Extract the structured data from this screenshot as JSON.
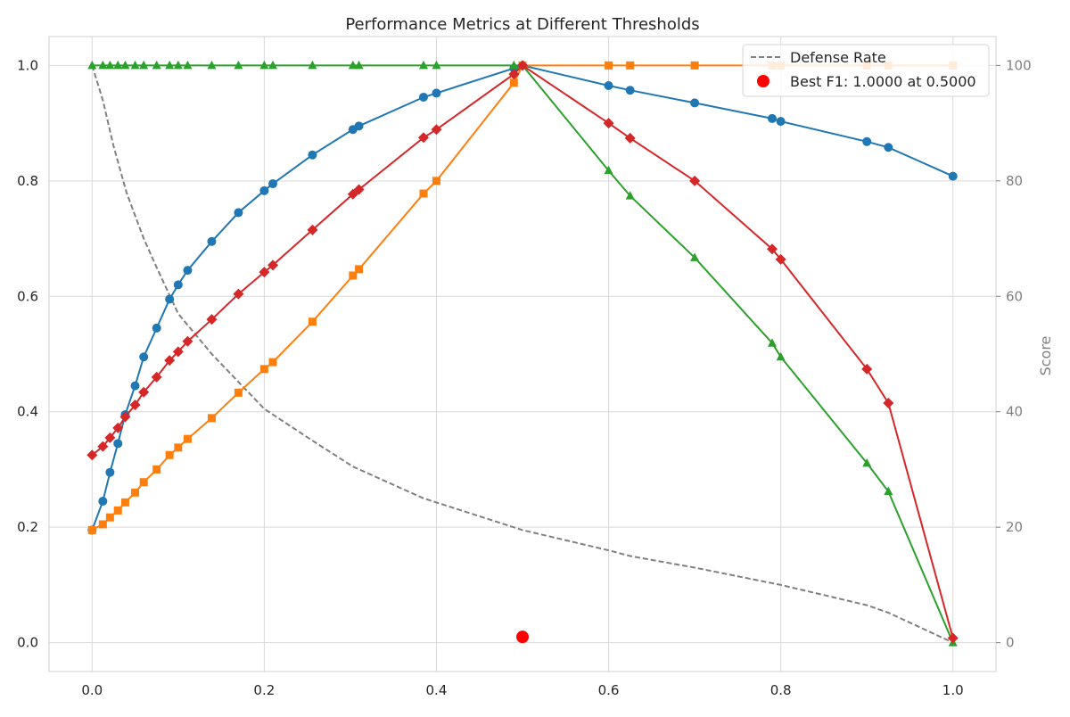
{
  "chart_data": {
    "type": "line",
    "title": "Performance Metrics at Different Thresholds",
    "xlabel": "",
    "ylabel": "",
    "y2label": "Score",
    "xlim": [
      -0.05,
      1.05
    ],
    "ylim": [
      -0.05,
      1.05
    ],
    "y2lim": [
      -5,
      105
    ],
    "xticks": [
      "0.0",
      "0.2",
      "0.4",
      "0.6",
      "0.8",
      "1.0"
    ],
    "yticks": [
      "0.0",
      "0.2",
      "0.4",
      "0.6",
      "0.8",
      "1.0"
    ],
    "y2ticks": [
      "0",
      "20",
      "40",
      "60",
      "80",
      "100"
    ],
    "grid": true,
    "legend_position": "top-right",
    "legend": [
      {
        "label": "Defense Rate",
        "style": "dashed-line",
        "color": "#808080"
      },
      {
        "label": "Best F1: 1.0000 at 0.5000",
        "style": "marker",
        "color": "#ff0000"
      }
    ],
    "series": [
      {
        "color": "#1f77b4",
        "marker": "circle",
        "points": [
          [
            0,
            0.195
          ],
          [
            0.0125,
            0.245
          ],
          [
            0.0208,
            0.295
          ],
          [
            0.03,
            0.345
          ],
          [
            0.0385,
            0.395
          ],
          [
            0.05,
            0.445
          ],
          [
            0.06,
            0.495
          ],
          [
            0.075,
            0.545
          ],
          [
            0.09,
            0.595
          ],
          [
            0.1,
            0.62
          ],
          [
            0.111,
            0.645
          ],
          [
            0.139,
            0.695
          ],
          [
            0.17,
            0.745
          ],
          [
            0.2,
            0.783
          ],
          [
            0.21,
            0.795
          ],
          [
            0.256,
            0.845
          ],
          [
            0.303,
            0.889
          ],
          [
            0.31,
            0.895
          ],
          [
            0.385,
            0.945
          ],
          [
            0.4,
            0.952
          ],
          [
            0.49,
            0.995
          ],
          [
            0.5,
            1.0
          ],
          [
            0.6,
            0.965
          ],
          [
            0.625,
            0.957
          ],
          [
            0.7,
            0.935
          ],
          [
            0.79,
            0.908
          ],
          [
            0.8,
            0.903
          ],
          [
            0.9,
            0.868
          ],
          [
            0.925,
            0.858
          ],
          [
            1.0,
            0.808
          ]
        ]
      },
      {
        "color": "#ff7f0e",
        "marker": "square",
        "points": [
          [
            0,
            0.195
          ],
          [
            0.0125,
            0.205
          ],
          [
            0.0208,
            0.217
          ],
          [
            0.03,
            0.229
          ],
          [
            0.0385,
            0.243
          ],
          [
            0.05,
            0.26
          ],
          [
            0.06,
            0.278
          ],
          [
            0.075,
            0.3
          ],
          [
            0.09,
            0.325
          ],
          [
            0.1,
            0.338
          ],
          [
            0.111,
            0.353
          ],
          [
            0.139,
            0.389
          ],
          [
            0.17,
            0.433
          ],
          [
            0.2,
            0.474
          ],
          [
            0.21,
            0.486
          ],
          [
            0.256,
            0.556
          ],
          [
            0.303,
            0.636
          ],
          [
            0.31,
            0.647
          ],
          [
            0.385,
            0.778
          ],
          [
            0.4,
            0.8
          ],
          [
            0.49,
            0.97
          ],
          [
            0.5,
            1.0
          ],
          [
            0.6,
            1.0
          ],
          [
            0.625,
            1.0
          ],
          [
            0.7,
            1.0
          ],
          [
            0.79,
            1.0
          ],
          [
            0.8,
            1.0
          ],
          [
            0.9,
            1.0
          ],
          [
            0.925,
            1.0
          ],
          [
            1.0,
            1.0
          ]
        ]
      },
      {
        "color": "#2ca02c",
        "marker": "triangle",
        "points": [
          [
            0,
            1.0
          ],
          [
            0.0125,
            1.0
          ],
          [
            0.0208,
            1.0
          ],
          [
            0.03,
            1.0
          ],
          [
            0.0385,
            1.0
          ],
          [
            0.05,
            1.0
          ],
          [
            0.06,
            1.0
          ],
          [
            0.075,
            1.0
          ],
          [
            0.09,
            1.0
          ],
          [
            0.1,
            1.0
          ],
          [
            0.111,
            1.0
          ],
          [
            0.139,
            1.0
          ],
          [
            0.17,
            1.0
          ],
          [
            0.2,
            1.0
          ],
          [
            0.21,
            1.0
          ],
          [
            0.256,
            1.0
          ],
          [
            0.303,
            1.0
          ],
          [
            0.31,
            1.0
          ],
          [
            0.385,
            1.0
          ],
          [
            0.4,
            1.0
          ],
          [
            0.49,
            1.0
          ],
          [
            0.5,
            1.0
          ],
          [
            0.6,
            0.818
          ],
          [
            0.625,
            0.774
          ],
          [
            0.7,
            0.667
          ],
          [
            0.79,
            0.519
          ],
          [
            0.8,
            0.495
          ],
          [
            0.9,
            0.311
          ],
          [
            0.925,
            0.262
          ],
          [
            1.0,
            0.0
          ]
        ]
      },
      {
        "color": "#d62728",
        "marker": "diamond",
        "points": [
          [
            0,
            0.325
          ],
          [
            0.0125,
            0.34
          ],
          [
            0.0208,
            0.355
          ],
          [
            0.03,
            0.372
          ],
          [
            0.0385,
            0.391
          ],
          [
            0.05,
            0.412
          ],
          [
            0.06,
            0.434
          ],
          [
            0.075,
            0.46
          ],
          [
            0.09,
            0.489
          ],
          [
            0.1,
            0.504
          ],
          [
            0.111,
            0.522
          ],
          [
            0.139,
            0.56
          ],
          [
            0.17,
            0.604
          ],
          [
            0.2,
            0.642
          ],
          [
            0.21,
            0.654
          ],
          [
            0.256,
            0.715
          ],
          [
            0.303,
            0.777
          ],
          [
            0.31,
            0.785
          ],
          [
            0.385,
            0.875
          ],
          [
            0.4,
            0.889
          ],
          [
            0.49,
            0.985
          ],
          [
            0.5,
            1.0
          ],
          [
            0.6,
            0.9
          ],
          [
            0.625,
            0.874
          ],
          [
            0.7,
            0.8
          ],
          [
            0.79,
            0.682
          ],
          [
            0.8,
            0.664
          ],
          [
            0.9,
            0.474
          ],
          [
            0.925,
            0.415
          ],
          [
            1.0,
            0.008
          ]
        ]
      }
    ],
    "defense_rate": {
      "name": "Defense Rate",
      "axis": "right",
      "color": "#808080",
      "style": "dashed",
      "points": [
        [
          0,
          100
        ],
        [
          0.0125,
          94
        ],
        [
          0.025,
          86
        ],
        [
          0.04,
          78
        ],
        [
          0.05,
          74
        ],
        [
          0.06,
          70
        ],
        [
          0.075,
          65
        ],
        [
          0.1,
          57
        ],
        [
          0.139,
          50
        ],
        [
          0.2,
          40.5
        ],
        [
          0.256,
          35
        ],
        [
          0.303,
          30.5
        ],
        [
          0.385,
          25
        ],
        [
          0.5,
          19.5
        ],
        [
          0.6,
          16
        ],
        [
          0.625,
          15
        ],
        [
          0.7,
          13
        ],
        [
          0.8,
          10
        ],
        [
          0.9,
          6.5
        ],
        [
          0.925,
          5.2
        ],
        [
          1.0,
          0
        ]
      ]
    },
    "best_f1_marker": {
      "label": "Best F1: 1.0000 at 0.5000",
      "x": 0.5,
      "y": 0.01,
      "color": "#ff0000"
    }
  }
}
